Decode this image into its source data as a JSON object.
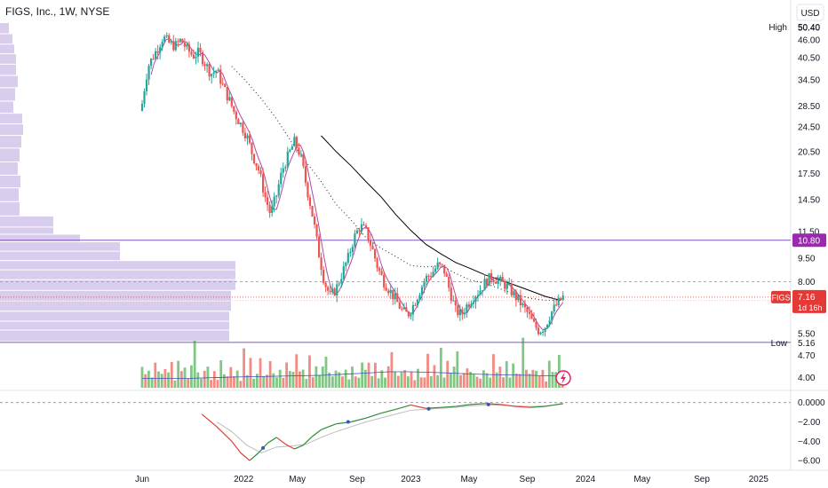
{
  "chart_title": "FIGS, Inc., 1W, NYSE",
  "currency": "USD",
  "symbol": "FIGS",
  "colors": {
    "up": "#26a69a",
    "down": "#ef5350",
    "up_volume": "#81c784",
    "down_volume": "#f28b82",
    "hline": "#7e57c2",
    "ma_fast": "#b04aa5",
    "ma_slow": "#000000",
    "ma_dotted": "#333333",
    "macd_up": "#2e8b3a",
    "macd_down": "#e53935",
    "signal": "#bdbdbd",
    "profile": "#d1c4e9",
    "last_price_bg": "#e53935",
    "hline_label_bg": "#9c27b0"
  },
  "chart_data": {
    "type": "candlestick",
    "price_axis": {
      "scale": "log",
      "range": [
        3.6,
        54
      ],
      "ticks": [
        "50.40",
        "46.00",
        "40.50",
        "34.50",
        "28.50",
        "24.50",
        "20.50",
        "17.50",
        "14.50",
        "11.50",
        "9.50",
        "8.00",
        "5.50",
        "4.70",
        "4.00"
      ]
    },
    "time_axis": {
      "labels": [
        "Jun",
        "2022",
        "May",
        "Sep",
        "2023",
        "May",
        "Sep",
        "2024",
        "May",
        "Sep",
        "2025"
      ]
    },
    "high": {
      "label": "High",
      "value": "50.40"
    },
    "low": {
      "label": "Low",
      "value": "5.16"
    },
    "last_price": {
      "value": "7.16",
      "countdown": "1d 16h"
    },
    "resistance_line": {
      "value": "10.80"
    },
    "dashed_level": 8.0,
    "price_path": [
      [
        0,
        29
      ],
      [
        4,
        38
      ],
      [
        10,
        43
      ],
      [
        14,
        47
      ],
      [
        18,
        45
      ],
      [
        22,
        44
      ],
      [
        26,
        46
      ],
      [
        30,
        43
      ],
      [
        34,
        41
      ],
      [
        38,
        42
      ],
      [
        42,
        39
      ],
      [
        46,
        36
      ],
      [
        50,
        37
      ],
      [
        54,
        33
      ],
      [
        58,
        30
      ],
      [
        62,
        27
      ],
      [
        66,
        25
      ],
      [
        70,
        23
      ],
      [
        74,
        20
      ],
      [
        78,
        18
      ],
      [
        82,
        15
      ],
      [
        86,
        13
      ],
      [
        90,
        15
      ],
      [
        94,
        18
      ],
      [
        98,
        20
      ],
      [
        102,
        22
      ],
      [
        106,
        20
      ],
      [
        110,
        16
      ],
      [
        114,
        13
      ],
      [
        118,
        10
      ],
      [
        122,
        8
      ],
      [
        126,
        7.2
      ],
      [
        130,
        7.6
      ],
      [
        134,
        8.5
      ],
      [
        138,
        9.5
      ],
      [
        142,
        11
      ],
      [
        146,
        12
      ],
      [
        150,
        11.5
      ],
      [
        154,
        10.2
      ],
      [
        158,
        8.8
      ],
      [
        162,
        8
      ],
      [
        166,
        7.5
      ],
      [
        170,
        7
      ],
      [
        174,
        6.5
      ],
      [
        178,
        6.3
      ],
      [
        182,
        6.8
      ],
      [
        186,
        7.5
      ],
      [
        190,
        8.2
      ],
      [
        194,
        8.5
      ],
      [
        198,
        9
      ],
      [
        202,
        8.8
      ],
      [
        206,
        7.5
      ],
      [
        210,
        6.5
      ],
      [
        214,
        6.3
      ],
      [
        218,
        6.8
      ],
      [
        222,
        7.2
      ],
      [
        226,
        7.5
      ],
      [
        230,
        8
      ],
      [
        234,
        8.3
      ],
      [
        238,
        8.1
      ],
      [
        242,
        7.9
      ],
      [
        246,
        7.6
      ],
      [
        250,
        7.2
      ],
      [
        254,
        6.8
      ],
      [
        258,
        6.4
      ],
      [
        262,
        5.9
      ],
      [
        266,
        5.6
      ],
      [
        270,
        5.8
      ],
      [
        274,
        6.4
      ],
      [
        278,
        6.8
      ],
      [
        282,
        7.16
      ]
    ],
    "ma_slow": [
      [
        120,
        23
      ],
      [
        130,
        20.5
      ],
      [
        140,
        18.5
      ],
      [
        150,
        16.5
      ],
      [
        160,
        14.8
      ],
      [
        170,
        13
      ],
      [
        180,
        11.6
      ],
      [
        190,
        10.5
      ],
      [
        200,
        9.8
      ],
      [
        210,
        9.2
      ],
      [
        220,
        8.8
      ],
      [
        230,
        8.4
      ],
      [
        240,
        8.1
      ],
      [
        250,
        7.8
      ],
      [
        260,
        7.5
      ],
      [
        270,
        7.2
      ],
      [
        280,
        7.0
      ]
    ],
    "ma_dotted": [
      [
        60,
        38
      ],
      [
        70,
        34
      ],
      [
        80,
        30
      ],
      [
        90,
        26
      ],
      [
        100,
        22
      ],
      [
        110,
        19
      ],
      [
        120,
        16.5
      ],
      [
        130,
        14
      ],
      [
        140,
        12.5
      ],
      [
        150,
        11
      ],
      [
        160,
        10.2
      ],
      [
        170,
        9.6
      ],
      [
        180,
        9
      ],
      [
        190,
        8.9
      ],
      [
        200,
        9
      ],
      [
        210,
        8.5
      ],
      [
        220,
        8.1
      ],
      [
        230,
        7.9
      ],
      [
        240,
        7.6
      ],
      [
        250,
        7.3
      ],
      [
        260,
        7.1
      ],
      [
        270,
        7.0
      ],
      [
        280,
        7.0
      ]
    ],
    "volume_scale": {
      "max": 10
    },
    "volume_pattern": [
      4,
      2.5,
      3.5,
      2,
      5,
      3,
      2.8,
      6,
      3.2,
      4.5,
      2.2,
      7,
      3,
      5.5,
      2.6,
      4.2,
      9,
      3.4,
      2.7,
      4.8
    ],
    "volume_ma": [
      [
        0,
        2.1
      ],
      [
        30,
        2.1
      ],
      [
        60,
        2.4
      ],
      [
        90,
        2.6
      ],
      [
        120,
        2.8
      ],
      [
        150,
        3.3
      ],
      [
        165,
        3.6
      ],
      [
        180,
        3.6
      ],
      [
        200,
        3.4
      ],
      [
        220,
        3.1
      ],
      [
        240,
        2.9
      ],
      [
        260,
        2.8
      ],
      [
        282,
        2.6
      ]
    ],
    "macd_axis": {
      "range": [
        -7,
        0.8
      ],
      "ticks": [
        "0.0000",
        "−2.00",
        "−4.00",
        "−6.00"
      ]
    },
    "macd": [
      [
        40,
        -1.2
      ],
      [
        50,
        -2.5
      ],
      [
        60,
        -4
      ],
      [
        66,
        -5.2
      ],
      [
        72,
        -6
      ],
      [
        78,
        -5.2
      ],
      [
        84,
        -4.2
      ],
      [
        90,
        -3.6
      ],
      [
        96,
        -4.3
      ],
      [
        102,
        -4.8
      ],
      [
        108,
        -4.4
      ],
      [
        114,
        -3.5
      ],
      [
        120,
        -2.8
      ],
      [
        130,
        -2.2
      ],
      [
        140,
        -2.0
      ],
      [
        150,
        -1.6
      ],
      [
        160,
        -1.1
      ],
      [
        170,
        -0.7
      ],
      [
        180,
        -0.25
      ],
      [
        190,
        -0.6
      ],
      [
        200,
        -0.5
      ],
      [
        210,
        -0.4
      ],
      [
        220,
        -0.2
      ],
      [
        230,
        -0.1
      ],
      [
        240,
        -0.2
      ],
      [
        250,
        -0.4
      ],
      [
        260,
        -0.5
      ],
      [
        270,
        -0.4
      ],
      [
        282,
        -0.1
      ]
    ],
    "macd_signal": [
      [
        50,
        -2.0
      ],
      [
        60,
        -3.0
      ],
      [
        70,
        -4.4
      ],
      [
        80,
        -5.2
      ],
      [
        90,
        -4.6
      ],
      [
        100,
        -4.5
      ],
      [
        110,
        -4.3
      ],
      [
        120,
        -3.6
      ],
      [
        130,
        -3.0
      ],
      [
        140,
        -2.5
      ],
      [
        150,
        -2.0
      ],
      [
        160,
        -1.6
      ],
      [
        170,
        -1.2
      ],
      [
        180,
        -0.8
      ],
      [
        190,
        -0.7
      ],
      [
        200,
        -0.6
      ],
      [
        210,
        -0.5
      ],
      [
        220,
        -0.35
      ],
      [
        230,
        -0.25
      ],
      [
        240,
        -0.25
      ],
      [
        250,
        -0.35
      ],
      [
        260,
        -0.4
      ],
      [
        270,
        -0.35
      ],
      [
        282,
        -0.15
      ]
    ],
    "macd_cross_points": [
      [
        81,
        -4.7
      ],
      [
        138,
        -2.0
      ],
      [
        192,
        -0.65
      ],
      [
        232,
        -0.2
      ]
    ],
    "profile_rows": [
      [
        50,
        10
      ],
      [
        46,
        14
      ],
      [
        43,
        16
      ],
      [
        40,
        18
      ],
      [
        37,
        18
      ],
      [
        34,
        20
      ],
      [
        31,
        17
      ],
      [
        28,
        15
      ],
      [
        26,
        25
      ],
      [
        24,
        26
      ],
      [
        22,
        24
      ],
      [
        20,
        22
      ],
      [
        18,
        20
      ],
      [
        16.5,
        23
      ],
      [
        15,
        21
      ],
      [
        13.5,
        22
      ],
      [
        12.2,
        60
      ],
      [
        11.5,
        60
      ],
      [
        11.0,
        90
      ],
      [
        10.3,
        135
      ],
      [
        9.6,
        135
      ],
      [
        9.0,
        265
      ],
      [
        8.4,
        265
      ],
      [
        7.8,
        265
      ],
      [
        7.2,
        260
      ],
      [
        6.7,
        260
      ],
      [
        6.2,
        258
      ],
      [
        5.8,
        258
      ],
      [
        5.45,
        258
      ]
    ]
  }
}
